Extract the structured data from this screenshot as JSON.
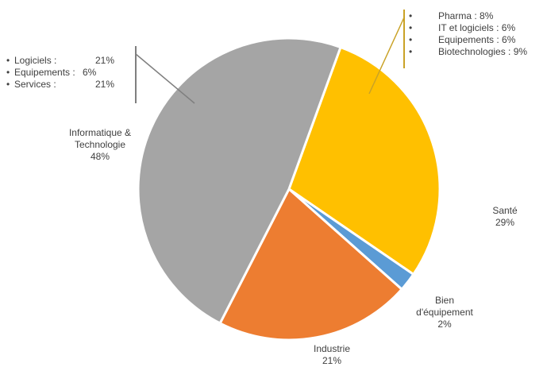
{
  "chart_data": {
    "type": "pie",
    "slices": [
      {
        "label": "Informatique & Technologie",
        "value": 48,
        "color": "#A5A5A5",
        "label_lines": [
          "Informatique &",
          "Technologie"
        ],
        "pct": "48%"
      },
      {
        "label": "Santé",
        "value": 29,
        "color": "#FFC000",
        "label_lines": [
          "Santé"
        ],
        "pct": "29%"
      },
      {
        "label": "Bien d'équipement",
        "value": 2,
        "color": "#5B9BD5",
        "label_lines": [
          "Bien",
          "d'équipement"
        ],
        "pct": "2%"
      },
      {
        "label": "Industrie",
        "value": 21,
        "color": "#ED7D31",
        "label_lines": [
          "Industrie"
        ],
        "pct": "21%"
      }
    ],
    "breakdowns": {
      "informatique": {
        "color": "#7F7F7F",
        "items": [
          {
            "name": "Logiciels :",
            "value": "21%"
          },
          {
            "name": "Equipements :",
            "value": "6%"
          },
          {
            "name": "Services :",
            "value": "21%"
          }
        ]
      },
      "sante": {
        "color": "#C9A227",
        "items": [
          {
            "text": "Pharma : 8%"
          },
          {
            "text": "IT et logiciels : 6%"
          },
          {
            "text": "Equipements : 6%"
          },
          {
            "text": "Biotechnologies : 9%"
          }
        ]
      }
    }
  }
}
